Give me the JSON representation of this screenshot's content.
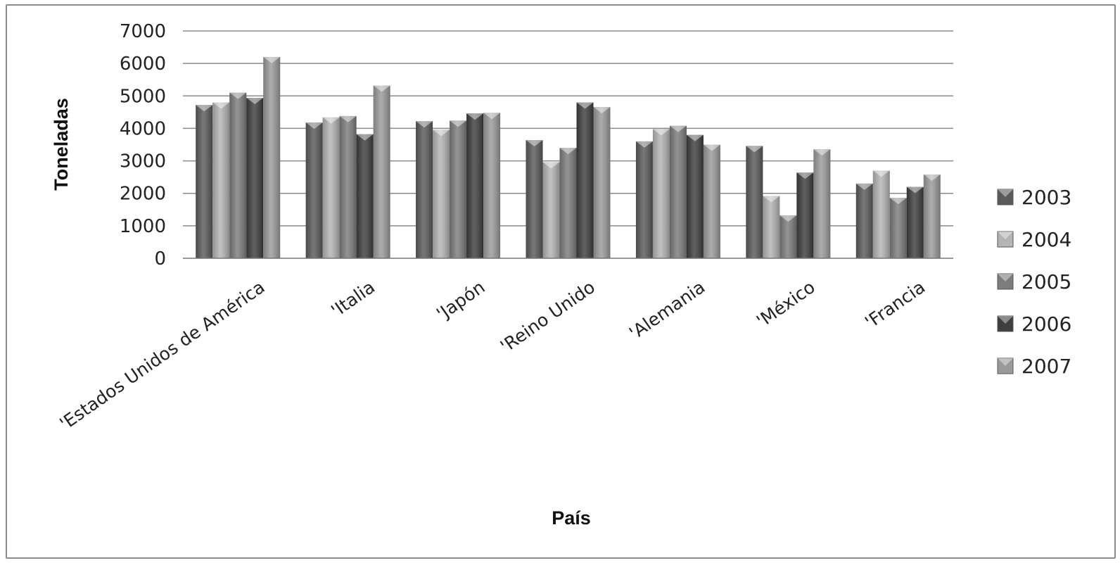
{
  "chart_data": {
    "type": "bar",
    "title": "",
    "xlabel": "País",
    "ylabel": "Toneladas",
    "ylim": [
      0,
      7000
    ],
    "yticks": [
      0,
      1000,
      2000,
      3000,
      4000,
      5000,
      6000,
      7000
    ],
    "grid": true,
    "legend_position": "right",
    "categories": [
      "'Estados Unidos de América",
      "'Italia",
      "'Japón",
      "'Reino Unido",
      "'Alemania",
      "'México",
      "'Francia"
    ],
    "series": [
      {
        "name": "2003",
        "color": "#5a5a5a",
        "values": [
          4720,
          4180,
          4220,
          3640,
          3600,
          3460,
          2300
        ]
      },
      {
        "name": "2004",
        "color": "#b4b4b4",
        "values": [
          4800,
          4340,
          3960,
          2960,
          3980,
          1920,
          2700
        ]
      },
      {
        "name": "2005",
        "color": "#7c7c7c",
        "values": [
          5100,
          4380,
          4240,
          3400,
          4080,
          1320,
          1860
        ]
      },
      {
        "name": "2006",
        "color": "#3e3e3e",
        "values": [
          4940,
          3820,
          4460,
          4800,
          3800,
          2640,
          2200
        ]
      },
      {
        "name": "2007",
        "color": "#9a9a9a",
        "values": [
          6200,
          5320,
          4480,
          4660,
          3500,
          3360,
          2580
        ]
      }
    ]
  }
}
